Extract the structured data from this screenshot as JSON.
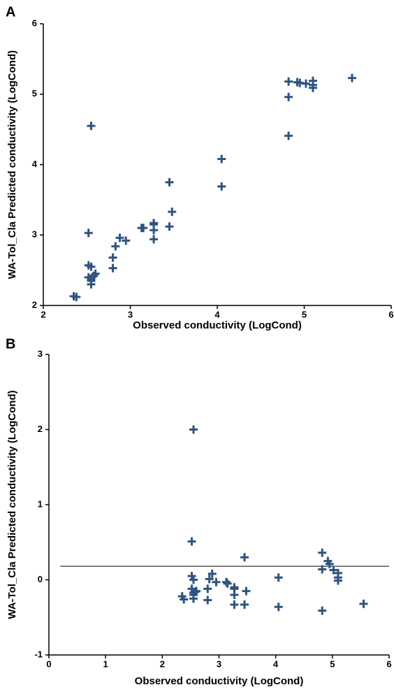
{
  "chart_data": [
    {
      "type": "scatter",
      "panel_label": "A",
      "xlabel": "Observed conductivity (LogCond)",
      "ylabel": "WA-Tol_Cla Predicted  conductivity (LogCond)",
      "color": "#2e5480",
      "x": [
        2.35,
        2.38,
        2.52,
        2.55,
        2.52,
        2.55,
        2.52,
        2.55,
        2.58,
        2.55,
        2.55,
        2.6,
        2.8,
        2.8,
        2.83,
        2.88,
        2.95,
        3.13,
        3.15,
        3.27,
        3.27,
        3.27,
        3.27,
        3.45,
        3.45,
        3.48,
        4.05,
        4.05,
        4.82,
        4.82,
        4.82,
        4.92,
        4.95,
        5.02,
        5.1,
        5.1,
        5.1,
        5.55
      ],
      "y": [
        2.13,
        2.12,
        3.03,
        4.55,
        2.57,
        2.55,
        2.4,
        2.38,
        2.42,
        2.35,
        2.3,
        2.45,
        2.53,
        2.68,
        2.84,
        2.96,
        2.92,
        3.1,
        3.1,
        3.17,
        3.15,
        3.07,
        2.94,
        3.75,
        3.12,
        3.33,
        4.08,
        3.69,
        5.18,
        4.96,
        4.41,
        5.17,
        5.16,
        5.15,
        5.19,
        5.13,
        5.09,
        5.23
      ],
      "xlim": [
        2,
        6
      ],
      "ylim": [
        2,
        6
      ],
      "xticks": [
        2,
        3,
        4,
        5,
        6
      ],
      "yticks": [
        2,
        3,
        4,
        5,
        6
      ]
    },
    {
      "type": "scatter",
      "panel_label": "B",
      "xlabel": "Observed conductivity (LogCond)",
      "ylabel": "WA-Tol_Cla Predicted  conductivity (LogCond)",
      "color": "#2e5480",
      "x": [
        2.35,
        2.38,
        2.52,
        2.55,
        2.52,
        2.55,
        2.52,
        2.55,
        2.58,
        2.55,
        2.55,
        2.6,
        2.8,
        2.8,
        2.83,
        2.88,
        2.95,
        3.13,
        3.15,
        3.27,
        3.27,
        3.27,
        3.27,
        3.45,
        3.45,
        3.48,
        4.05,
        4.05,
        4.82,
        4.82,
        4.82,
        4.92,
        4.95,
        5.02,
        5.1,
        5.1,
        5.1,
        5.55
      ],
      "y": [
        -0.22,
        -0.26,
        0.51,
        2.0,
        0.05,
        0.0,
        -0.12,
        -0.17,
        -0.16,
        -0.2,
        -0.25,
        -0.15,
        -0.27,
        -0.12,
        0.01,
        0.08,
        -0.03,
        -0.03,
        -0.05,
        -0.1,
        -0.12,
        -0.2,
        -0.33,
        0.3,
        -0.33,
        -0.15,
        0.03,
        -0.36,
        0.36,
        0.14,
        -0.41,
        0.25,
        0.21,
        0.13,
        0.09,
        0.03,
        -0.01,
        -0.32
      ],
      "hline": 0.18,
      "hline_xrange": [
        0.2,
        6
      ],
      "xlim": [
        0,
        6
      ],
      "ylim": [
        -1,
        3
      ],
      "xticks": [
        0,
        1,
        2,
        3,
        4,
        5,
        6
      ],
      "yticks": [
        -1,
        0,
        1,
        2,
        3
      ]
    }
  ]
}
